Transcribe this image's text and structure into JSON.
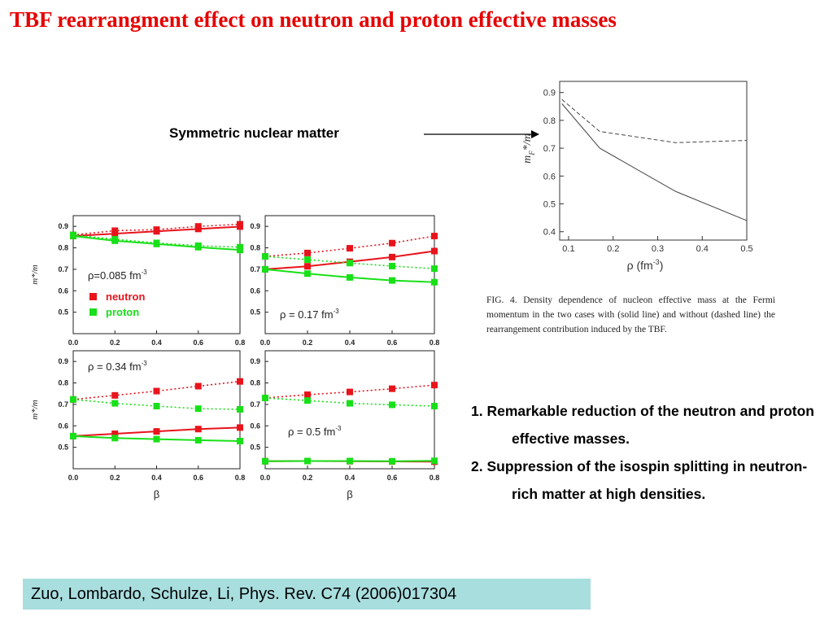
{
  "title": "TBF rearrangment effect on neutron and proton effective masses",
  "symmetric_label": "Symmetric nuclear matter",
  "caption": "FIG. 4. Density dependence of nucleon effective mass at the Fermi momentum in the two cases with (solid line) and without (dashed line) the rearrangement contribution induced by the TBF.",
  "points": [
    "1. Remarkable reduction of the neutron and proton effective masses.",
    "2. Suppression of the isospin splitting in neutron-rich matter at high densities."
  ],
  "citation": "Zuo, Lombardo, Schulze, Li,  Phys. Rev. C74 (2006)017304",
  "colors": {
    "title": "#e60000",
    "neutron": "#e8141c",
    "proton": "#18e018",
    "citation_bg": "#a9dedf"
  },
  "chart_data": [
    {
      "type": "line",
      "ylabel": "m*/m",
      "xlim": [
        0.0,
        0.8
      ],
      "ylim": [
        0.4,
        0.95
      ],
      "xticks": [
        "0.0",
        "0.2",
        "0.4",
        "0.6",
        "0.8"
      ],
      "yticks": [
        "0.5",
        "0.6",
        "0.7",
        "0.8",
        "0.9"
      ],
      "annotation": "ρ=0.085 fm",
      "annotation_exp": "-3",
      "legend": [
        "neutron",
        "proton"
      ],
      "x": [
        0.0,
        0.2,
        0.4,
        0.6,
        0.8
      ],
      "series": [
        {
          "name": "neutron",
          "style": "solid",
          "values": [
            0.855,
            0.866,
            0.877,
            0.888,
            0.899
          ]
        },
        {
          "name": "proton",
          "style": "solid",
          "values": [
            0.855,
            0.833,
            0.818,
            0.803,
            0.79
          ]
        },
        {
          "name": "neutron",
          "style": "dotted",
          "values": [
            0.86,
            0.88,
            0.885,
            0.9,
            0.91
          ]
        },
        {
          "name": "proton",
          "style": "dotted",
          "values": [
            0.86,
            0.84,
            0.823,
            0.81,
            0.803
          ]
        }
      ]
    },
    {
      "type": "line",
      "xlim": [
        0.0,
        0.8
      ],
      "ylim": [
        0.4,
        0.95
      ],
      "xticks": [
        "0.0",
        "0.2",
        "0.4",
        "0.6",
        "0.8"
      ],
      "yticks": [
        "0.5",
        "0.6",
        "0.7",
        "0.8",
        "0.9"
      ],
      "annotation": "ρ = 0.17 fm",
      "annotation_exp": "-3",
      "x": [
        0.0,
        0.2,
        0.4,
        0.6,
        0.8
      ],
      "series": [
        {
          "name": "neutron",
          "style": "solid",
          "values": [
            0.7,
            0.714,
            0.735,
            0.757,
            0.785
          ]
        },
        {
          "name": "proton",
          "style": "solid",
          "values": [
            0.7,
            0.68,
            0.662,
            0.648,
            0.64
          ]
        },
        {
          "name": "neutron",
          "style": "dotted",
          "values": [
            0.76,
            0.776,
            0.798,
            0.822,
            0.855
          ]
        },
        {
          "name": "proton",
          "style": "dotted",
          "values": [
            0.76,
            0.745,
            0.729,
            0.715,
            0.703
          ]
        }
      ]
    },
    {
      "type": "line",
      "ylabel": "m*/m",
      "xlabel": "β",
      "xlim": [
        0.0,
        0.8
      ],
      "ylim": [
        0.4,
        0.95
      ],
      "xticks": [
        "0.0",
        "0.2",
        "0.4",
        "0.6",
        "0.8"
      ],
      "yticks": [
        "0.5",
        "0.6",
        "0.7",
        "0.8",
        "0.9"
      ],
      "annotation": "ρ = 0.34 fm",
      "annotation_exp": "-3",
      "x": [
        0.0,
        0.2,
        0.4,
        0.6,
        0.8
      ],
      "series": [
        {
          "name": "neutron",
          "style": "solid",
          "values": [
            0.552,
            0.563,
            0.574,
            0.585,
            0.592
          ]
        },
        {
          "name": "proton",
          "style": "solid",
          "values": [
            0.552,
            0.543,
            0.538,
            0.533,
            0.529
          ]
        },
        {
          "name": "neutron",
          "style": "dotted",
          "values": [
            0.723,
            0.742,
            0.762,
            0.785,
            0.807
          ]
        },
        {
          "name": "proton",
          "style": "dotted",
          "values": [
            0.723,
            0.705,
            0.692,
            0.68,
            0.677
          ]
        }
      ]
    },
    {
      "type": "line",
      "xlabel": "β",
      "xlim": [
        0.0,
        0.8
      ],
      "ylim": [
        0.4,
        0.95
      ],
      "xticks": [
        "0.0",
        "0.2",
        "0.4",
        "0.6",
        "0.8"
      ],
      "yticks": [
        "0.5",
        "0.6",
        "0.7",
        "0.8",
        "0.9"
      ],
      "annotation": "ρ = 0.5 fm",
      "annotation_exp": "-3",
      "x": [
        0.0,
        0.2,
        0.4,
        0.6,
        0.8
      ],
      "series": [
        {
          "name": "neutron",
          "style": "solid",
          "values": [
            0.435,
            0.436,
            0.435,
            0.434,
            0.433
          ]
        },
        {
          "name": "proton",
          "style": "solid",
          "values": [
            0.435,
            0.436,
            0.436,
            0.435,
            0.437
          ]
        },
        {
          "name": "neutron",
          "style": "dotted",
          "values": [
            0.73,
            0.745,
            0.758,
            0.773,
            0.79
          ]
        },
        {
          "name": "proton",
          "style": "dotted",
          "values": [
            0.73,
            0.718,
            0.705,
            0.698,
            0.692
          ]
        }
      ]
    },
    {
      "type": "line",
      "ylabel_main": "m",
      "ylabel_sub": "F",
      "ylabel_tail": "*/m",
      "xlabel": "ρ (fm",
      "xlabel_exp": "-3",
      "xlabel_tail": ")",
      "xlim": [
        0.08,
        0.5
      ],
      "ylim": [
        0.37,
        0.94
      ],
      "xticks": [
        "0.1",
        "0.2",
        "0.3",
        "0.4",
        "0.5"
      ],
      "yticks": [
        "0.4",
        "0.5",
        "0.6",
        "0.7",
        "0.8",
        "0.9"
      ],
      "x": [
        0.085,
        0.17,
        0.34,
        0.5
      ],
      "series": [
        {
          "name": "solid",
          "style": "solid",
          "values": [
            0.86,
            0.7,
            0.545,
            0.44
          ]
        },
        {
          "name": "dashed",
          "style": "dashed",
          "values": [
            0.875,
            0.76,
            0.72,
            0.728
          ]
        }
      ]
    }
  ]
}
